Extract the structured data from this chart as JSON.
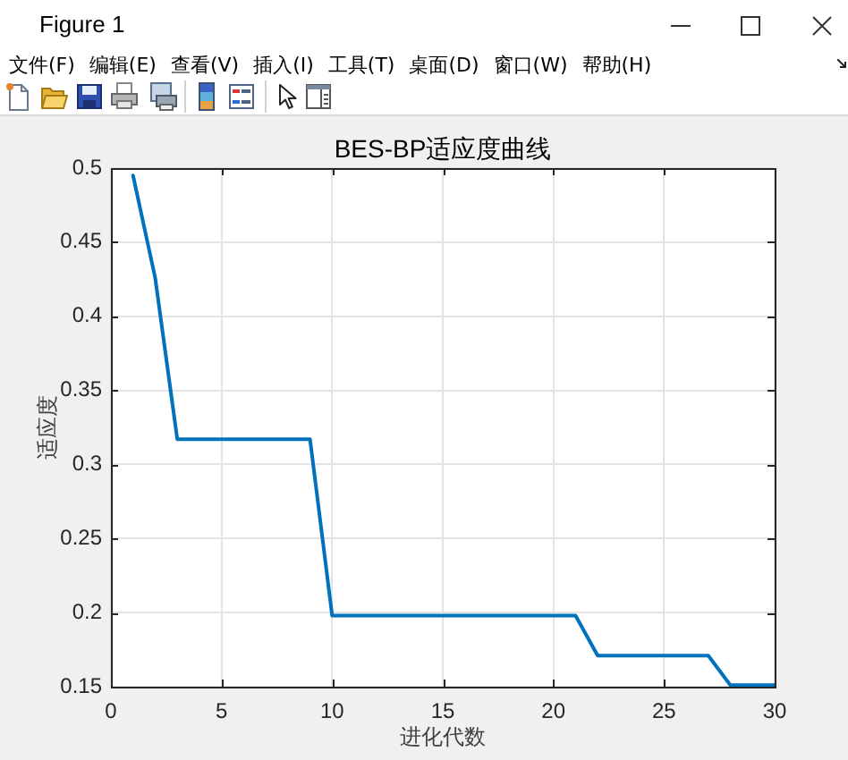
{
  "chart_data": {
    "type": "line",
    "title": "BES-BP适应度曲线",
    "xlabel": "进化代数",
    "ylabel": "适应度",
    "x": [
      1,
      2,
      3,
      4,
      5,
      6,
      7,
      8,
      9,
      10,
      11,
      12,
      13,
      14,
      15,
      16,
      17,
      18,
      19,
      20,
      21,
      22,
      23,
      24,
      25,
      26,
      27,
      28,
      29,
      30
    ],
    "series": [
      {
        "color": "#0072bd",
        "values": [
          0.495,
          0.426,
          0.317,
          0.317,
          0.317,
          0.317,
          0.317,
          0.317,
          0.317,
          0.198,
          0.198,
          0.198,
          0.198,
          0.198,
          0.198,
          0.198,
          0.198,
          0.198,
          0.198,
          0.198,
          0.198,
          0.171,
          0.171,
          0.171,
          0.171,
          0.171,
          0.171,
          0.151,
          0.151,
          0.151
        ]
      }
    ],
    "xlim": [
      0,
      30
    ],
    "ylim": [
      0.15,
      0.5
    ],
    "xticks": [
      0,
      5,
      10,
      15,
      20,
      25,
      30
    ],
    "yticks": [
      0.15,
      0.2,
      0.25,
      0.3,
      0.35,
      0.4,
      0.45,
      0.5
    ],
    "grid": true,
    "annotations": [
      "Figure 1",
      "文件(F)",
      "编辑(E)",
      "查看(V)",
      "插入(I)",
      "工具(T)",
      "桌面(D)",
      "窗口(W)",
      "帮助(H)"
    ]
  }
}
